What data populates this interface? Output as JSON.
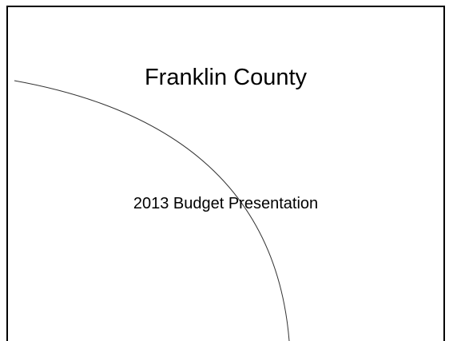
{
  "slide": {
    "title": "Franklin County",
    "subtitle": "2013 Budget Presentation"
  },
  "colors": {
    "background": "#ffffff",
    "text": "#000000",
    "border": "#000000",
    "arc": "#333333"
  }
}
